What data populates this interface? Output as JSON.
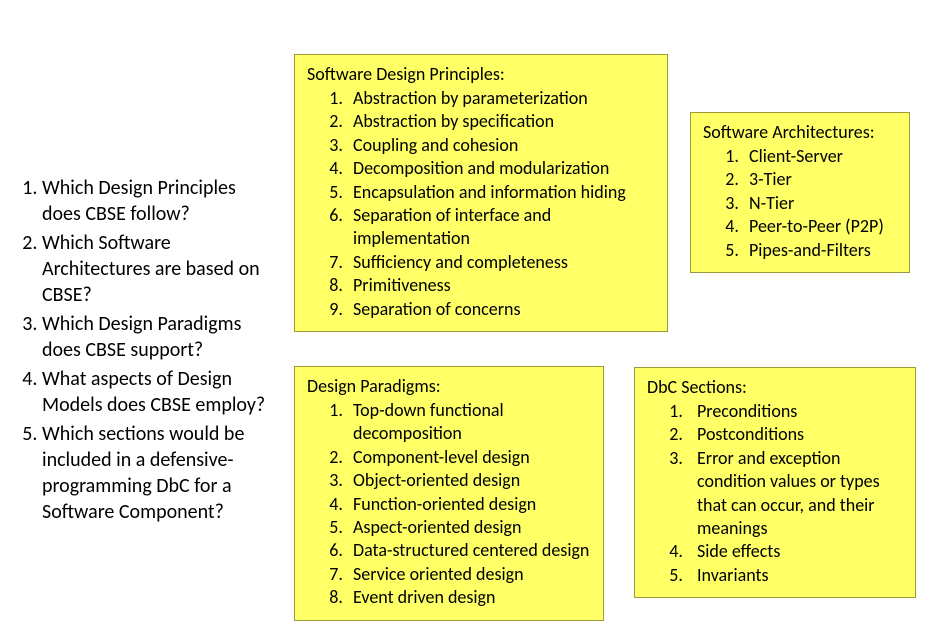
{
  "colors": {
    "box_bg": "#ffff66",
    "box_border": "#9a9a3a",
    "page_bg": "#ffffff",
    "text": "#000000"
  },
  "questions": [
    "Which Design Principles does CBSE follow?",
    "Which Software Architectures are based on CBSE?",
    "Which Design Paradigms does CBSE support?",
    "What aspects of Design Models does CBSE employ?",
    "Which sections would be included in a defensive-programming DbC for a Software Component?"
  ],
  "boxes": {
    "principles": {
      "title": "Software Design Principles:",
      "items": [
        "Abstraction by parameterization",
        "Abstraction by specification",
        "Coupling and cohesion",
        "Decomposition and modularization",
        "Encapsulation and information hiding",
        "Separation of interface and implementation",
        "Sufficiency and completeness",
        "Primitiveness",
        "Separation of concerns"
      ]
    },
    "architectures": {
      "title": "Software Architectures:",
      "items": [
        "Client-Server",
        "3-Tier",
        "N-Tier",
        "Peer-to-Peer (P2P)",
        "Pipes-and-Filters"
      ]
    },
    "paradigms": {
      "title": "Design Paradigms:",
      "items": [
        "Top-down functional decomposition",
        "Component-level design",
        "Object-oriented design",
        "Function-oriented design",
        "Aspect-oriented design",
        "Data-structured centered design",
        "Service oriented design",
        "Event driven design"
      ]
    },
    "dbc": {
      "title": "DbC Sections:",
      "items": [
        "Preconditions",
        "Postconditions",
        "Error and exception condition values or types that can occur, and their meanings",
        "Side effects",
        "Invariants"
      ]
    }
  }
}
